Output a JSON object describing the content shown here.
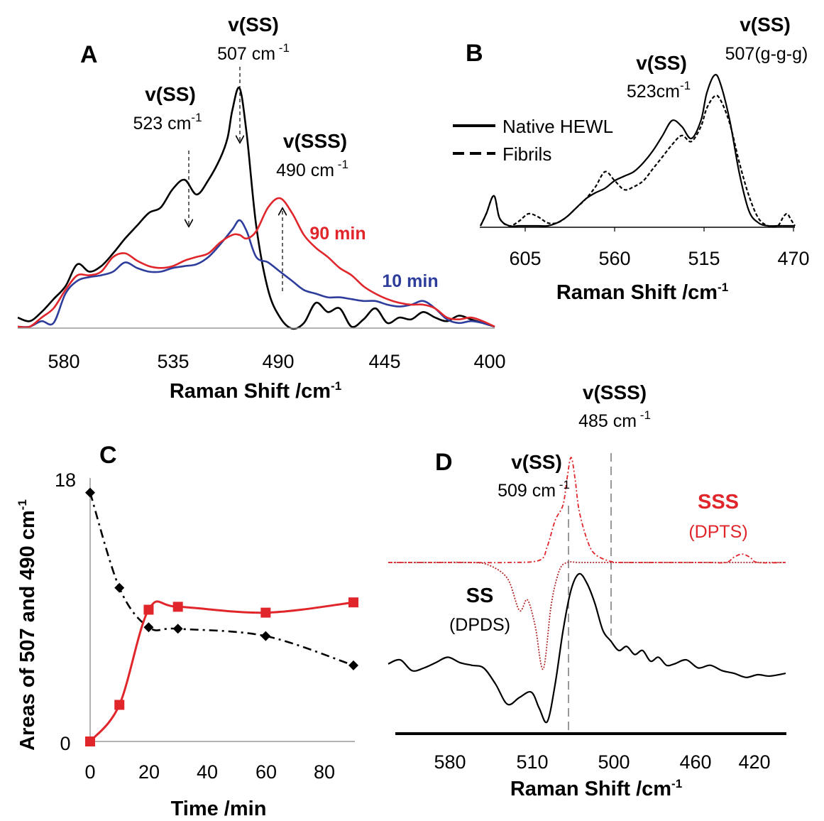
{
  "chart_data": [
    {
      "panel": "A",
      "type": "line",
      "xlabel": "Raman Shift /cm",
      "xlabel_sup": "-1",
      "x_ticks": [
        "580",
        "535",
        "490",
        "445",
        "400"
      ],
      "xlim": [
        600,
        400
      ],
      "series": [
        {
          "name": "",
          "color": "#000000",
          "x": [
            600,
            595,
            590,
            585,
            580,
            575,
            570,
            565,
            560,
            555,
            550,
            545,
            540,
            535,
            530,
            525,
            520,
            515,
            512,
            510,
            507,
            504,
            500,
            495,
            490,
            485,
            480,
            475,
            470,
            465,
            460,
            455,
            450,
            445,
            440,
            435,
            430,
            425,
            420,
            415,
            410,
            405,
            400
          ],
          "y": [
            0.05,
            0.03,
            0.08,
            0.15,
            0.22,
            0.34,
            0.3,
            0.33,
            0.4,
            0.48,
            0.55,
            0.62,
            0.65,
            0.75,
            0.8,
            0.72,
            0.8,
            0.92,
            1.03,
            1.18,
            1.3,
            1.05,
            0.55,
            0.2,
            0.05,
            -0.01,
            0.02,
            0.13,
            0.08,
            0.1,
            0.0,
            0.04,
            0.1,
            0.02,
            0.05,
            0.04,
            0.08,
            0.05,
            0.03,
            0.06,
            0.04,
            0.02,
            0.0
          ]
        },
        {
          "name": "10 min",
          "color": "#2e3d9c",
          "x": [
            600,
            595,
            590,
            585,
            580,
            575,
            570,
            565,
            560,
            555,
            550,
            545,
            540,
            535,
            530,
            525,
            520,
            515,
            510,
            507,
            504,
            500,
            495,
            490,
            485,
            480,
            475,
            470,
            465,
            460,
            455,
            450,
            445,
            440,
            435,
            430,
            425,
            420,
            415,
            410,
            405,
            400
          ],
          "y": [
            0.0,
            0.0,
            0.03,
            0.02,
            0.18,
            0.25,
            0.27,
            0.28,
            0.3,
            0.35,
            0.32,
            0.3,
            0.3,
            0.32,
            0.33,
            0.34,
            0.38,
            0.45,
            0.53,
            0.58,
            0.52,
            0.38,
            0.35,
            0.3,
            0.25,
            0.2,
            0.18,
            0.16,
            0.16,
            0.15,
            0.14,
            0.14,
            0.12,
            0.11,
            0.12,
            0.14,
            0.1,
            0.04,
            0.02,
            0.03,
            0.02,
            0.0
          ]
        },
        {
          "name": "90 min",
          "color": "#e0262b",
          "x": [
            600,
            595,
            590,
            585,
            580,
            575,
            570,
            565,
            560,
            555,
            550,
            545,
            540,
            535,
            530,
            525,
            520,
            515,
            510,
            507,
            504,
            500,
            495,
            490,
            485,
            480,
            475,
            470,
            465,
            460,
            455,
            450,
            445,
            440,
            435,
            430,
            425,
            420,
            415,
            410,
            405,
            400
          ],
          "y": [
            0.0,
            0.0,
            0.05,
            0.1,
            0.2,
            0.28,
            0.28,
            0.3,
            0.38,
            0.4,
            0.36,
            0.33,
            0.32,
            0.33,
            0.36,
            0.38,
            0.4,
            0.46,
            0.5,
            0.5,
            0.48,
            0.52,
            0.65,
            0.7,
            0.62,
            0.5,
            0.43,
            0.38,
            0.32,
            0.28,
            0.22,
            0.18,
            0.15,
            0.13,
            0.12,
            0.12,
            0.1,
            0.05,
            0.04,
            0.05,
            0.03,
            0.0
          ]
        }
      ],
      "annotations": [
        {
          "label": "v(SS)",
          "value": "507 cm",
          "sup": " -1"
        },
        {
          "label": "v(SS)",
          "value": "523 cm",
          "sup": "-1"
        },
        {
          "label": "v(SSS)",
          "value": "490 cm",
          "sup": " -1"
        }
      ],
      "series_labels": [
        "90 min",
        "10 min"
      ]
    },
    {
      "panel": "B",
      "type": "line",
      "xlabel": "Raman Shift /cm",
      "xlabel_sup": "-1",
      "x_ticks": [
        "605",
        "560",
        "515",
        "470"
      ],
      "xlim": [
        630,
        466
      ],
      "legend": {
        "placement": "top-left",
        "entries": [
          "Native HEWL",
          "Fibrils"
        ]
      },
      "series": [
        {
          "name": "Native HEWL",
          "style": "solid",
          "x": [
            630,
            627,
            623,
            620,
            615,
            610,
            605,
            600,
            595,
            590,
            585,
            580,
            575,
            570,
            565,
            560,
            555,
            550,
            545,
            540,
            535,
            530,
            525,
            520,
            515,
            512,
            508,
            505,
            500,
            495,
            490,
            485,
            480,
            475,
            472,
            470,
            468,
            466
          ],
          "y": [
            0.0,
            0.08,
            0.2,
            0.05,
            0.0,
            0.0,
            0.0,
            0.0,
            0.0,
            0.02,
            0.06,
            0.12,
            0.18,
            0.22,
            0.25,
            0.3,
            0.33,
            0.36,
            0.42,
            0.5,
            0.6,
            0.7,
            0.66,
            0.58,
            0.7,
            0.88,
            1.0,
            0.95,
            0.7,
            0.35,
            0.1,
            0.02,
            0.0,
            0.0,
            0.0,
            0.0,
            0.0,
            0.0
          ]
        },
        {
          "name": "Fibrils",
          "style": "dashed",
          "x": [
            630,
            627,
            623,
            620,
            615,
            610,
            605,
            600,
            595,
            590,
            585,
            580,
            575,
            570,
            565,
            560,
            555,
            550,
            545,
            540,
            535,
            530,
            525,
            520,
            515,
            512,
            508,
            505,
            500,
            495,
            490,
            485,
            480,
            475,
            472,
            470,
            468,
            466
          ],
          "y": [
            0.0,
            0.08,
            0.2,
            0.05,
            0.0,
            0.03,
            0.08,
            0.06,
            0.02,
            0.02,
            0.06,
            0.12,
            0.18,
            0.26,
            0.36,
            0.3,
            0.24,
            0.26,
            0.3,
            0.38,
            0.46,
            0.54,
            0.6,
            0.56,
            0.66,
            0.78,
            0.86,
            0.84,
            0.68,
            0.42,
            0.2,
            0.05,
            0.0,
            0.0,
            0.06,
            0.08,
            0.04,
            0.0
          ]
        }
      ],
      "annotations": [
        {
          "label": "v(SS)",
          "value": "523cm",
          "sup": "-1"
        },
        {
          "label": "v(SS)",
          "value": "507(g-g-g)"
        }
      ]
    },
    {
      "panel": "C",
      "type": "line",
      "xlabel": "Time /min",
      "ylabel": "Areas  of 507 and 490 cm",
      "ylabel_sup": "-1",
      "x_ticks": [
        "0",
        "20",
        "40",
        "60",
        "80"
      ],
      "y_ticks": [
        "0",
        "18"
      ],
      "xlim": [
        0,
        90
      ],
      "ylim": [
        0,
        18
      ],
      "series": [
        {
          "name": "",
          "color": "#000000",
          "marker": "diamond",
          "style": "dash-dot",
          "x": [
            0,
            10,
            20,
            30,
            60,
            90
          ],
          "y": [
            17.0,
            10.5,
            7.8,
            7.7,
            7.2,
            5.2
          ]
        },
        {
          "name": "",
          "color": "#e0262b",
          "marker": "square",
          "style": "solid",
          "x": [
            0,
            10,
            20,
            30,
            60,
            90
          ],
          "y": [
            0.0,
            2.5,
            9.0,
            9.2,
            8.8,
            9.5
          ]
        }
      ]
    },
    {
      "panel": "D",
      "type": "line",
      "xlabel": "Raman Shift /cm",
      "xlabel_sup": "-1",
      "x_ticks": [
        "580",
        "510",
        "500",
        "460",
        "420"
      ],
      "series": [
        {
          "name": "",
          "color": "#000000",
          "style": "solid",
          "x": [
            0,
            0.03,
            0.06,
            0.09,
            0.12,
            0.15,
            0.18,
            0.21,
            0.24,
            0.27,
            0.3,
            0.33,
            0.36,
            0.38,
            0.4,
            0.42,
            0.44,
            0.46,
            0.48,
            0.5,
            0.52,
            0.54,
            0.56,
            0.58,
            0.6,
            0.62,
            0.64,
            0.66,
            0.68,
            0.7,
            0.72,
            0.75,
            0.78,
            0.81,
            0.84,
            0.87,
            0.9,
            0.93,
            0.96,
            1.0
          ],
          "y": [
            0.45,
            0.48,
            0.4,
            0.42,
            0.46,
            0.5,
            0.46,
            0.44,
            0.42,
            0.3,
            0.15,
            0.2,
            0.24,
            0.12,
            0.02,
            0.3,
            0.7,
            1.0,
            1.12,
            1.05,
            0.9,
            0.7,
            0.62,
            0.55,
            0.58,
            0.52,
            0.55,
            0.47,
            0.5,
            0.44,
            0.45,
            0.48,
            0.42,
            0.44,
            0.4,
            0.38,
            0.35,
            0.37,
            0.36,
            0.38
          ]
        },
        {
          "name": "SS (DPDS)",
          "color": "#b02a2a",
          "style": "dotted",
          "x": [
            0,
            0.1,
            0.2,
            0.25,
            0.3,
            0.33,
            0.35,
            0.37,
            0.39,
            0.41,
            0.43,
            0.45,
            0.48,
            0.52,
            0.6,
            0.7,
            0.8,
            0.9,
            0.95,
            1.0
          ],
          "y": [
            0,
            0,
            0,
            -0.02,
            -0.15,
            -0.45,
            -0.35,
            -0.6,
            -1.0,
            -0.4,
            -0.08,
            0,
            0,
            0,
            0,
            0,
            0,
            0,
            0,
            0
          ]
        },
        {
          "name": "SSS (DPTS)",
          "color": "#e0262b",
          "style": "dash-dot",
          "x": [
            0,
            0.1,
            0.2,
            0.3,
            0.38,
            0.4,
            0.42,
            0.44,
            0.45,
            0.46,
            0.47,
            0.48,
            0.5,
            0.52,
            0.56,
            0.6,
            0.7,
            0.8,
            0.85,
            0.87,
            0.89,
            0.91,
            0.93,
            1.0
          ],
          "y": [
            0,
            0,
            0,
            0,
            0.02,
            0.15,
            0.4,
            0.55,
            0.8,
            1.0,
            0.8,
            0.5,
            0.22,
            0.08,
            0.01,
            0,
            0,
            0,
            0,
            0.05,
            0.08,
            0.05,
            0,
            0
          ]
        }
      ],
      "annotations": [
        {
          "label": "v(SSS)",
          "value": "485 cm",
          "sup": " -1"
        },
        {
          "label": "v(SS)",
          "value": "509 cm",
          "sup": " -1"
        }
      ],
      "series_labels": [
        {
          "name": "SSS",
          "sub": "(DPTS)",
          "color": "#e0262b"
        },
        {
          "name": "SS",
          "sub": "(DPDS)",
          "color": "#000000"
        }
      ]
    }
  ],
  "panel_letters": [
    "A",
    "B",
    "C",
    "D"
  ]
}
